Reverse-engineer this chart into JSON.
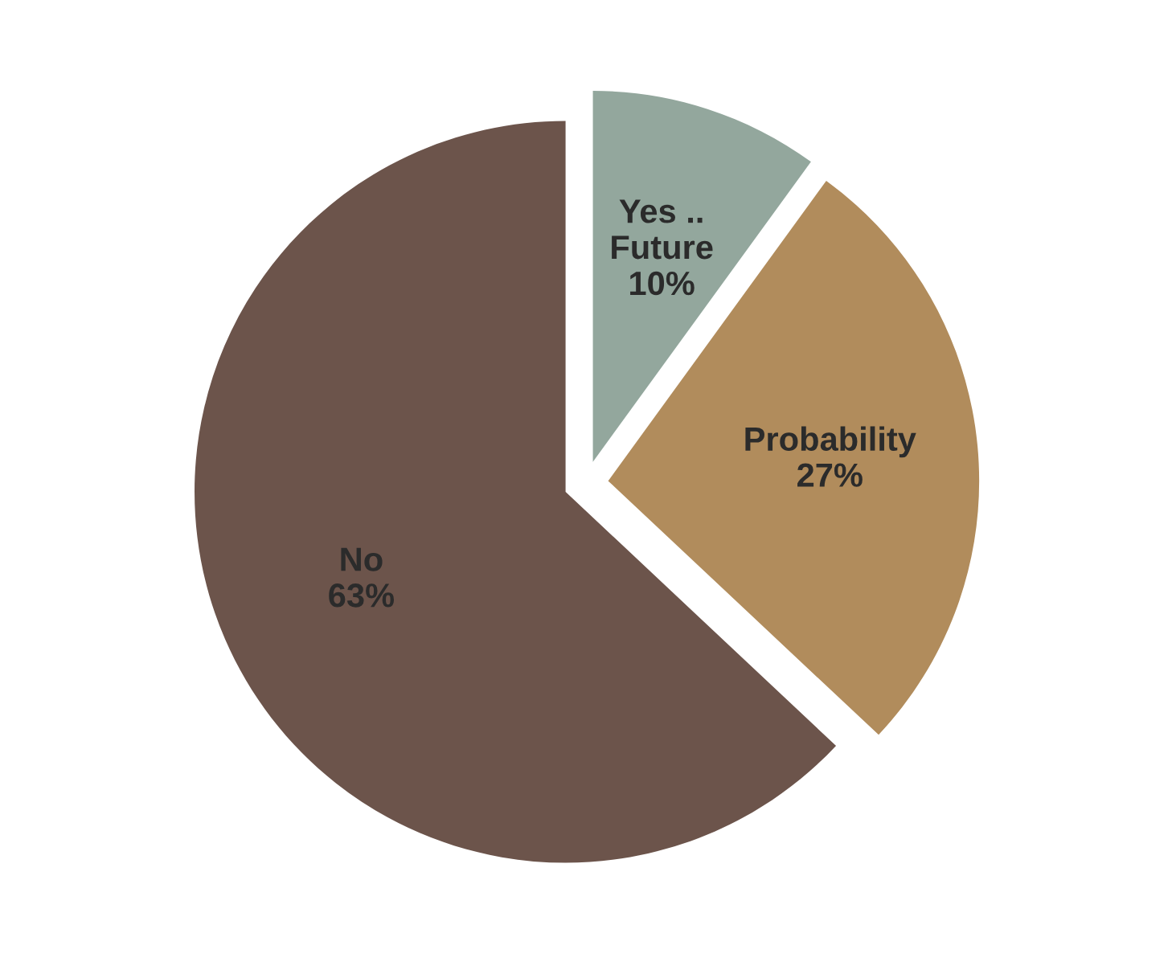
{
  "chart_data": {
    "type": "pie",
    "categories": [
      "Yes ..\nFuture",
      "Probability",
      "No"
    ],
    "values": [
      10,
      27,
      63
    ],
    "value_labels": [
      "10%",
      "27%",
      "63%"
    ],
    "colors": [
      "#93a79d",
      "#b18c5c",
      "#6c544b"
    ]
  }
}
